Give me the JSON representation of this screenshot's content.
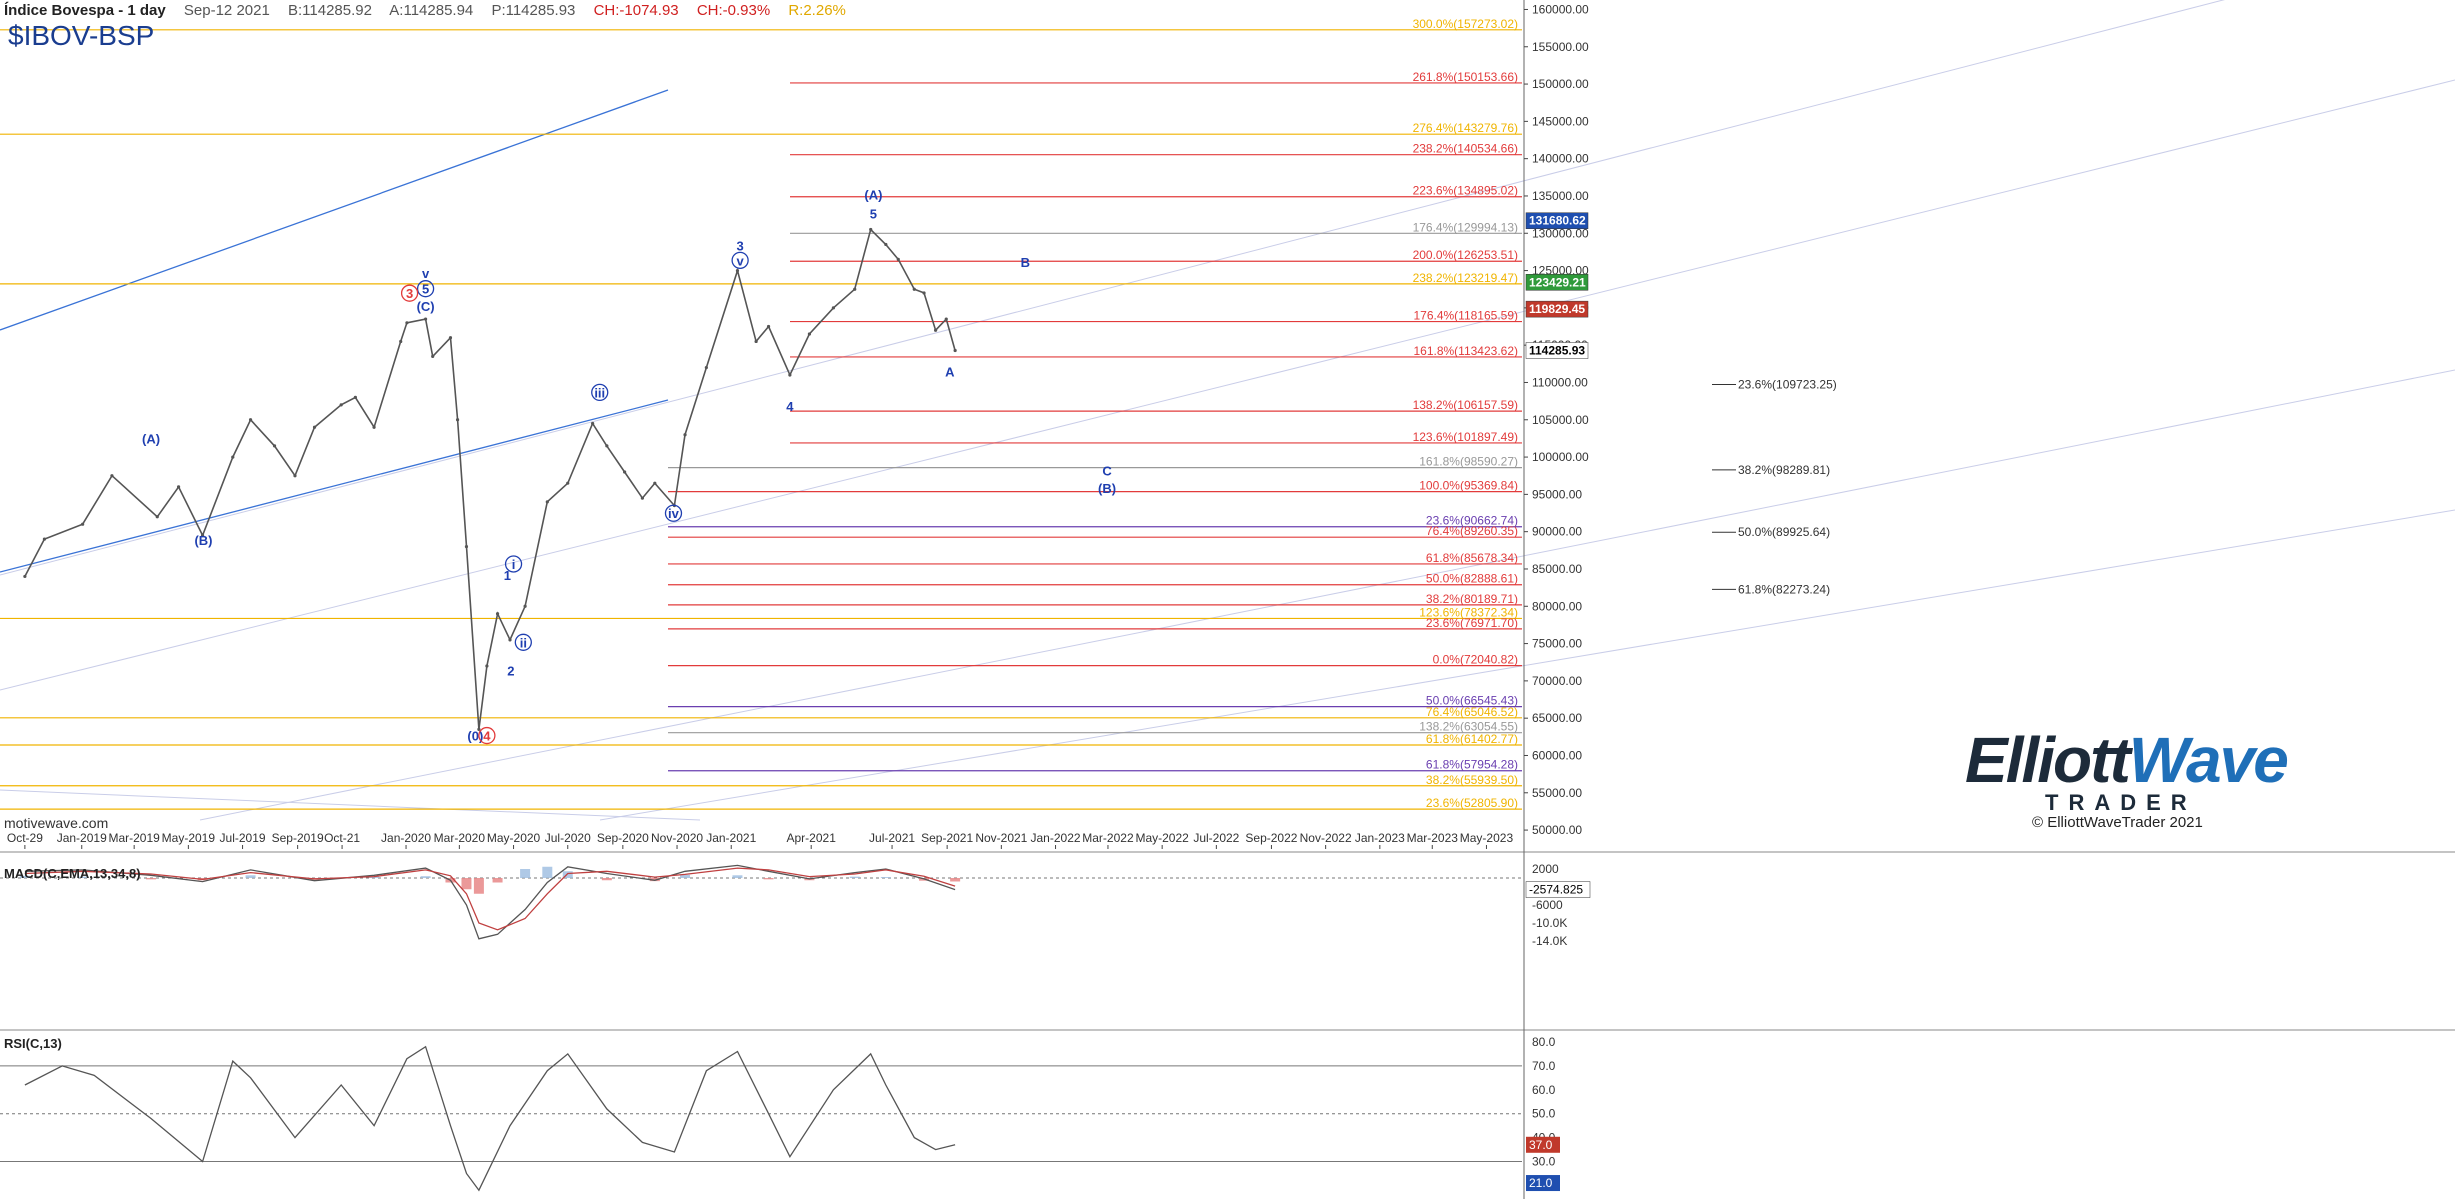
{
  "header": {
    "title": "Índice Bovespa - 1 day",
    "date": "Sep-12 2021",
    "bid": "B:114285.92",
    "ask": "A:114285.94",
    "price": "P:114285.93",
    "change": "CH:-1074.93",
    "change_pct": "CH:-0.93%",
    "range": "R:2.26%",
    "symbol": "$IBOV-BSP"
  },
  "watermark": "motivewave.com",
  "logo": {
    "main_a": "Elliott",
    "main_b": "Wave",
    "sub": "TRADER",
    "copyright": "© ElliottWaveTrader 2021"
  },
  "colors": {
    "price": "#555555",
    "gold": "#f0b400",
    "red": "#e23b3b",
    "blue": "#1f3fb0",
    "purple": "#6a3fb0",
    "gray": "#999999",
    "trend": "#3a73d6"
  },
  "chart_data": [
    {
      "type": "line",
      "panel": "price",
      "y_axis_ticks": [
        "160000.00",
        "155000.00",
        "150000.00",
        "145000.00",
        "140000.00",
        "135000.00",
        "130000.00",
        "125000.00",
        "120000.00",
        "115000.00",
        "110000.00",
        "105000.00",
        "100000.00",
        "95000.00",
        "90000.00",
        "85000.00",
        "80000.00",
        "75000.00",
        "70000.00",
        "65000.00",
        "60000.00",
        "55000.00",
        "50000.00"
      ],
      "ylim": [
        48000,
        161000
      ],
      "x_axis_ticks": [
        "Oct-29",
        "Jan-2019",
        "Mar-2019",
        "May-2019",
        "Jul-2019",
        "Sep-2019",
        "Oct-21",
        "Jan-2020",
        "Mar-2020",
        "May-2020",
        "Jul-2020",
        "Sep-2020",
        "Nov-2020",
        "Jan-2021",
        "Apr-2021",
        "Jul-2021",
        "Sep-2021",
        "Nov-2021",
        "Jan-2022",
        "Mar-2022",
        "May-2022",
        "Jul-2022",
        "Sep-2022",
        "Nov-2022",
        "Jan-2023",
        "Mar-2023",
        "May-2023"
      ],
      "price_series": {
        "name": "",
        "x": [
          "2018-10-29",
          "2018-11-20",
          "2019-01-02",
          "2019-02-04",
          "2019-03-27",
          "2019-04-20",
          "2019-05-17",
          "2019-06-20",
          "2019-07-10",
          "2019-08-06",
          "2019-08-29",
          "2019-09-20",
          "2019-10-20",
          "2019-11-05",
          "2019-11-26",
          "2019-12-26",
          "2020-01-02",
          "2020-01-23",
          "2020-01-31",
          "2020-02-20",
          "2020-02-28",
          "2020-03-09",
          "2020-03-23",
          "2020-04-01",
          "2020-04-13",
          "2020-04-27",
          "2020-05-14",
          "2020-06-08",
          "2020-07-01",
          "2020-07-29",
          "2020-08-14",
          "2020-09-03",
          "2020-09-23",
          "2020-10-07",
          "2020-10-29",
          "2020-11-10",
          "2020-12-04",
          "2021-01-08",
          "2021-01-29",
          "2021-02-12",
          "2021-03-08",
          "2021-03-30",
          "2021-04-26",
          "2021-05-20",
          "2021-06-07",
          "2021-06-24",
          "2021-07-08",
          "2021-07-26",
          "2021-08-06",
          "2021-08-19",
          "2021-08-31",
          "2021-09-10"
        ],
        "y": [
          84000,
          89000,
          91000,
          97500,
          92000,
          96000,
          89500,
          100000,
          105000,
          101500,
          97500,
          104000,
          107000,
          108000,
          104000,
          115500,
          118000,
          118500,
          113500,
          116000,
          105000,
          88000,
          63500,
          72000,
          79000,
          75500,
          80000,
          94000,
          96500,
          104500,
          101500,
          98000,
          94500,
          96500,
          93500,
          103000,
          112000,
          125000,
          115500,
          117500,
          111000,
          116500,
          120000,
          122500,
          130500,
          128500,
          126500,
          122500,
          122000,
          117000,
          118500,
          114285
        ]
      },
      "fib_lines": [
        {
          "label": "300.0%(157273.02)",
          "value": 157273.02,
          "color": "gold"
        },
        {
          "label": "261.8%(150153.66)",
          "value": 150153.66,
          "color": "red"
        },
        {
          "label": "276.4%(143279.76)",
          "value": 143279.76,
          "color": "gold"
        },
        {
          "label": "238.2%(140534.66)",
          "value": 140534.66,
          "color": "red"
        },
        {
          "label": "223.6%(134895.02)",
          "value": 134895.02,
          "color": "red"
        },
        {
          "label": "176.4%(129994.13)",
          "value": 129994.13,
          "color": "gray"
        },
        {
          "label": "200.0%(126253.51)",
          "value": 126253.51,
          "color": "red"
        },
        {
          "label": "238.2%(123219.47)",
          "value": 123219.47,
          "color": "gold"
        },
        {
          "label": "176.4%(118165.59)",
          "value": 118165.59,
          "color": "red"
        },
        {
          "label": "161.8%(113423.62)",
          "value": 113423.62,
          "color": "red"
        },
        {
          "label": "138.2%(106157.59)",
          "value": 106157.59,
          "color": "red"
        },
        {
          "label": "123.6%(101897.49)",
          "value": 101897.49,
          "color": "red"
        },
        {
          "label": "161.8%(98590.27)",
          "value": 98590.27,
          "color": "gray"
        },
        {
          "label": "100.0%(95369.84)",
          "value": 95369.84,
          "color": "red"
        },
        {
          "label": "23.6%(90662.74)",
          "value": 90662.74,
          "color": "purple"
        },
        {
          "label": "76.4%(89260.35)",
          "value": 89260.35,
          "color": "red"
        },
        {
          "label": "61.8%(85678.34)",
          "value": 85678.34,
          "color": "red"
        },
        {
          "label": "50.0%(82888.61)",
          "value": 82888.61,
          "color": "red"
        },
        {
          "label": "38.2%(80189.71)",
          "value": 80189.71,
          "color": "red"
        },
        {
          "label": "123.6%(78372.34)",
          "value": 78372.34,
          "color": "gold"
        },
        {
          "label": "23.6%(76971.70)",
          "value": 76971.7,
          "color": "red"
        },
        {
          "label": "0.0%(72040.82)",
          "value": 72040.82,
          "color": "red"
        },
        {
          "label": "50.0%(66545.43)",
          "value": 66545.43,
          "color": "purple"
        },
        {
          "label": "76.4%(65046.52)",
          "value": 65046.52,
          "color": "gold"
        },
        {
          "label": "138.2%(63054.55)",
          "value": 63054.55,
          "color": "gray"
        },
        {
          "label": "61.8%(61402.77)",
          "value": 61402.77,
          "color": "gold"
        },
        {
          "label": "61.8%(57954.28)",
          "value": 57954.28,
          "color": "purple"
        },
        {
          "label": "38.2%(55939.50)",
          "value": 55939.5,
          "color": "gold"
        },
        {
          "label": "23.6%(52805.90)",
          "value": 52805.9,
          "color": "gold"
        }
      ],
      "retracements": [
        {
          "label": "23.6%(109723.25)",
          "value": 109723.25
        },
        {
          "label": "38.2%(98289.81)",
          "value": 98289.81
        },
        {
          "label": "50.0%(89925.64)",
          "value": 89925.64
        },
        {
          "label": "61.8%(82273.24)",
          "value": 82273.24
        }
      ],
      "price_tags": [
        {
          "label": "131680.62",
          "value": 131680.62,
          "bg": "#1f4fb0"
        },
        {
          "label": "123429.21",
          "value": 123429.21,
          "bg": "#2f9a3a"
        },
        {
          "label": "119829.45",
          "value": 119829.45,
          "bg": "#c0392b"
        },
        {
          "label": "114285.93",
          "value": 114285.93,
          "bg": "#ffffff"
        }
      ],
      "wave_labels": [
        {
          "text": "(A)",
          "x": "2019-03-20",
          "y": 101800,
          "color": "blue"
        },
        {
          "text": "(B)",
          "x": "2019-05-18",
          "y": 88200,
          "color": "blue"
        },
        {
          "text": "v",
          "x": "2020-01-23",
          "y": 124000,
          "color": "blue"
        },
        {
          "text": "5",
          "x": "2020-01-23",
          "y": 121900,
          "color": "blue",
          "circle": true
        },
        {
          "text": "3",
          "x": "2020-01-05",
          "y": 121300,
          "color": "red",
          "circle": true
        },
        {
          "text": "(C)",
          "x": "2020-01-23",
          "y": 119600,
          "color": "blue"
        },
        {
          "text": "(0)",
          "x": "2020-03-19",
          "y": 62000,
          "color": "blue"
        },
        {
          "text": "4",
          "x": "2020-04-01",
          "y": 62000,
          "color": "red",
          "circle": true
        },
        {
          "text": "1",
          "x": "2020-04-24",
          "y": 83500,
          "color": "blue"
        },
        {
          "text": "i",
          "x": "2020-05-01",
          "y": 85000,
          "color": "blue",
          "circle": true
        },
        {
          "text": "2",
          "x": "2020-04-28",
          "y": 70700,
          "color": "blue"
        },
        {
          "text": "ii",
          "x": "2020-05-12",
          "y": 74500,
          "color": "blue",
          "circle": true
        },
        {
          "text": "iii",
          "x": "2020-08-06",
          "y": 108000,
          "color": "blue",
          "circle": true
        },
        {
          "text": "iv",
          "x": "2020-10-28",
          "y": 91800,
          "color": "blue",
          "circle": true
        },
        {
          "text": "3",
          "x": "2021-01-11",
          "y": 127700,
          "color": "blue"
        },
        {
          "text": "v",
          "x": "2021-01-11",
          "y": 125700,
          "color": "blue",
          "circle": true
        },
        {
          "text": "4",
          "x": "2021-03-08",
          "y": 106200,
          "color": "blue"
        },
        {
          "text": "(A)",
          "x": "2021-06-10",
          "y": 134500,
          "color": "blue"
        },
        {
          "text": "5",
          "x": "2021-06-10",
          "y": 132000,
          "color": "blue"
        },
        {
          "text": "A",
          "x": "2021-09-04",
          "y": 110800,
          "color": "blue"
        },
        {
          "text": "B",
          "x": "2021-11-28",
          "y": 125500,
          "color": "blue"
        },
        {
          "text": "C",
          "x": "2022-02-28",
          "y": 97500,
          "color": "blue"
        },
        {
          "text": "(B)",
          "x": "2022-02-28",
          "y": 95200,
          "color": "blue"
        }
      ]
    },
    {
      "type": "line",
      "panel": "macd",
      "title": "MACD(C,EMA,13,34,8)",
      "y_axis_ticks": [
        "2000",
        "-2000",
        "-6000",
        "-10.0K",
        "-14.0K"
      ],
      "ylim": [
        -16000,
        4000
      ],
      "current_value_label": "-2574.825",
      "series": [
        {
          "name": "MACD",
          "x": [
            "2018-10-29",
            "2019-01-02",
            "2019-03-20",
            "2019-05-17",
            "2019-07-10",
            "2019-09-20",
            "2019-11-26",
            "2020-01-23",
            "2020-02-20",
            "2020-03-09",
            "2020-03-23",
            "2020-04-13",
            "2020-05-14",
            "2020-06-08",
            "2020-07-01",
            "2020-08-14",
            "2020-10-07",
            "2020-11-10",
            "2021-01-08",
            "2021-02-12",
            "2021-03-30",
            "2021-05-20",
            "2021-06-24",
            "2021-08-06",
            "2021-09-10"
          ],
          "values": [
            1500,
            1800,
            600,
            -800,
            1800,
            -600,
            600,
            2200,
            -500,
            -6000,
            -13500,
            -12500,
            -7000,
            -1000,
            2500,
            1000,
            -500,
            1500,
            2800,
            1500,
            -200,
            1200,
            2000,
            -200,
            -2575
          ]
        },
        {
          "name": "Signal",
          "x": [
            "2018-10-29",
            "2019-01-02",
            "2019-03-20",
            "2019-05-17",
            "2019-07-10",
            "2019-09-20",
            "2019-11-26",
            "2020-01-23",
            "2020-02-20",
            "2020-03-09",
            "2020-03-23",
            "2020-04-13",
            "2020-05-14",
            "2020-06-08",
            "2020-07-01",
            "2020-08-14",
            "2020-10-07",
            "2020-11-10",
            "2021-01-08",
            "2021-02-12",
            "2021-03-30",
            "2021-05-20",
            "2021-06-24",
            "2021-08-06",
            "2021-09-10"
          ],
          "values": [
            1000,
            1500,
            900,
            -300,
            1200,
            -200,
            300,
            1800,
            500,
            -3500,
            -10000,
            -11500,
            -9000,
            -3500,
            1000,
            1500,
            200,
            800,
            2200,
            1800,
            300,
            900,
            1800,
            400,
            -1800
          ]
        }
      ]
    },
    {
      "type": "line",
      "panel": "rsi",
      "title": "RSI(C,13)",
      "y_axis_ticks": [
        "80.0",
        "70.0",
        "60.0",
        "50.0",
        "40.0",
        "30.0",
        "20.0"
      ],
      "ylim": [
        16,
        85
      ],
      "levels": [
        70,
        50,
        30
      ],
      "current_value_labels": [
        "37.0",
        "21.0"
      ],
      "series": [
        {
          "name": "RSI",
          "x": [
            "2018-10-29",
            "2018-12-10",
            "2019-01-15",
            "2019-03-20",
            "2019-05-17",
            "2019-06-20",
            "2019-07-10",
            "2019-08-29",
            "2019-10-20",
            "2019-11-26",
            "2020-01-02",
            "2020-01-23",
            "2020-02-20",
            "2020-03-09",
            "2020-03-23",
            "2020-04-27",
            "2020-06-08",
            "2020-07-01",
            "2020-08-14",
            "2020-09-23",
            "2020-10-29",
            "2020-12-04",
            "2021-01-08",
            "2021-02-12",
            "2021-03-08",
            "2021-04-26",
            "2021-06-07",
            "2021-06-24",
            "2021-07-26",
            "2021-08-19",
            "2021-09-10"
          ],
          "values": [
            62,
            70,
            66,
            48,
            30,
            72,
            65,
            40,
            62,
            45,
            73,
            78,
            45,
            25,
            18,
            45,
            68,
            75,
            52,
            38,
            34,
            68,
            76,
            50,
            32,
            60,
            75,
            62,
            40,
            35,
            37
          ]
        }
      ]
    }
  ]
}
